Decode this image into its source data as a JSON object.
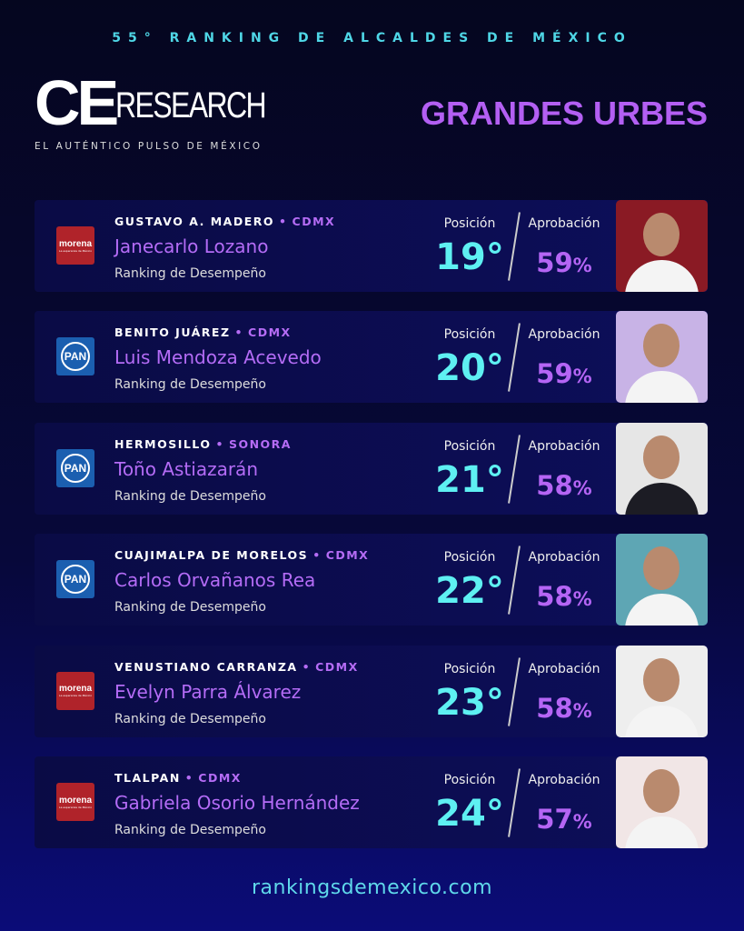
{
  "header": {
    "kicker": "55° RANKING DE ALCALDES DE MÉXICO",
    "logo_left": "CE",
    "logo_right": "RESEARCH",
    "tagline": "EL AUTÉNTICO PULSO DE MÉXICO",
    "section": "GRANDES URBES"
  },
  "labels": {
    "subtitle": "Ranking de Desempeño",
    "position": "Posición",
    "approval": "Aprobación",
    "state_separator": "•"
  },
  "cards": [
    {
      "municipality": "GUSTAVO A. MADERO",
      "state": "CDMX",
      "name": "Janecarlo Lozano",
      "party": "morena",
      "party_tagline": "La esperanza de México",
      "position": "19°",
      "approval": "59",
      "approval_sign": "%",
      "photo_color": "#8a1a24"
    },
    {
      "municipality": "BENITO JUÁREZ",
      "state": "CDMX",
      "name": "Luis Mendoza Acevedo",
      "party": "PAN",
      "position": "20°",
      "approval": "59",
      "approval_sign": "%",
      "photo_color": "#c8b3e6"
    },
    {
      "municipality": "HERMOSILLO",
      "state": "SONORA",
      "name": "Toño Astiazarán",
      "party": "PAN",
      "position": "21°",
      "approval": "58",
      "approval_sign": "%",
      "photo_color": "#e6e6e6"
    },
    {
      "municipality": "CUAJIMALPA DE MORELOS",
      "state": "CDMX",
      "name": "Carlos Orvañanos Rea",
      "party": "PAN",
      "position": "22°",
      "approval": "58",
      "approval_sign": "%",
      "photo_color": "#5ea6b4"
    },
    {
      "municipality": "VENUSTIANO CARRANZA",
      "state": "CDMX",
      "name": "Evelyn Parra Álvarez",
      "party": "morena",
      "party_tagline": "La esperanza de México",
      "position": "23°",
      "approval": "58",
      "approval_sign": "%",
      "photo_color": "#eeeeee"
    },
    {
      "municipality": "TLALPAN",
      "state": "CDMX",
      "name": "Gabriela Osorio Hernández",
      "party": "morena",
      "party_tagline": "La esperanza de México",
      "position": "24°",
      "approval": "57",
      "approval_sign": "%",
      "photo_color": "#f1e6e6"
    }
  ],
  "footer": {
    "url": "rankingsdemexico.com"
  }
}
